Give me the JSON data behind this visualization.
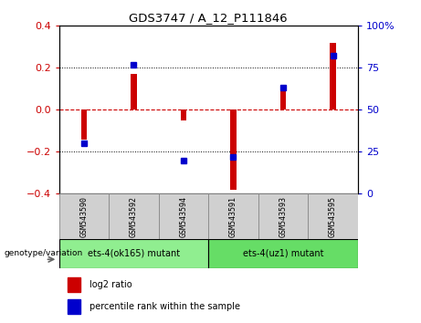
{
  "title": "GDS3747 / A_12_P111846",
  "samples": [
    "GSM543590",
    "GSM543592",
    "GSM543594",
    "GSM543591",
    "GSM543593",
    "GSM543595"
  ],
  "log2_ratios": [
    -0.14,
    0.17,
    -0.05,
    -0.38,
    0.1,
    0.32
  ],
  "percentile_ranks": [
    30,
    77,
    20,
    22,
    63,
    82
  ],
  "ylim_left": [
    -0.4,
    0.4
  ],
  "ylim_right": [
    0,
    100
  ],
  "yticks_left": [
    -0.4,
    -0.2,
    0,
    0.2,
    0.4
  ],
  "yticks_right": [
    0,
    25,
    50,
    75,
    100
  ],
  "bar_color_red": "#cc0000",
  "bar_color_blue": "#0000cc",
  "zero_line_color": "#cc0000",
  "groups": [
    {
      "label": "ets-4(ok165) mutant",
      "color": "#90ee90",
      "start": 0,
      "end": 2
    },
    {
      "label": "ets-4(uz1) mutant",
      "color": "#66dd66",
      "start": 3,
      "end": 5
    }
  ],
  "genotype_label": "genotype/variation",
  "legend_items": [
    "log2 ratio",
    "percentile rank within the sample"
  ],
  "right_axis_color": "#0000cc",
  "left_axis_color": "#cc0000",
  "bar_width": 0.12
}
